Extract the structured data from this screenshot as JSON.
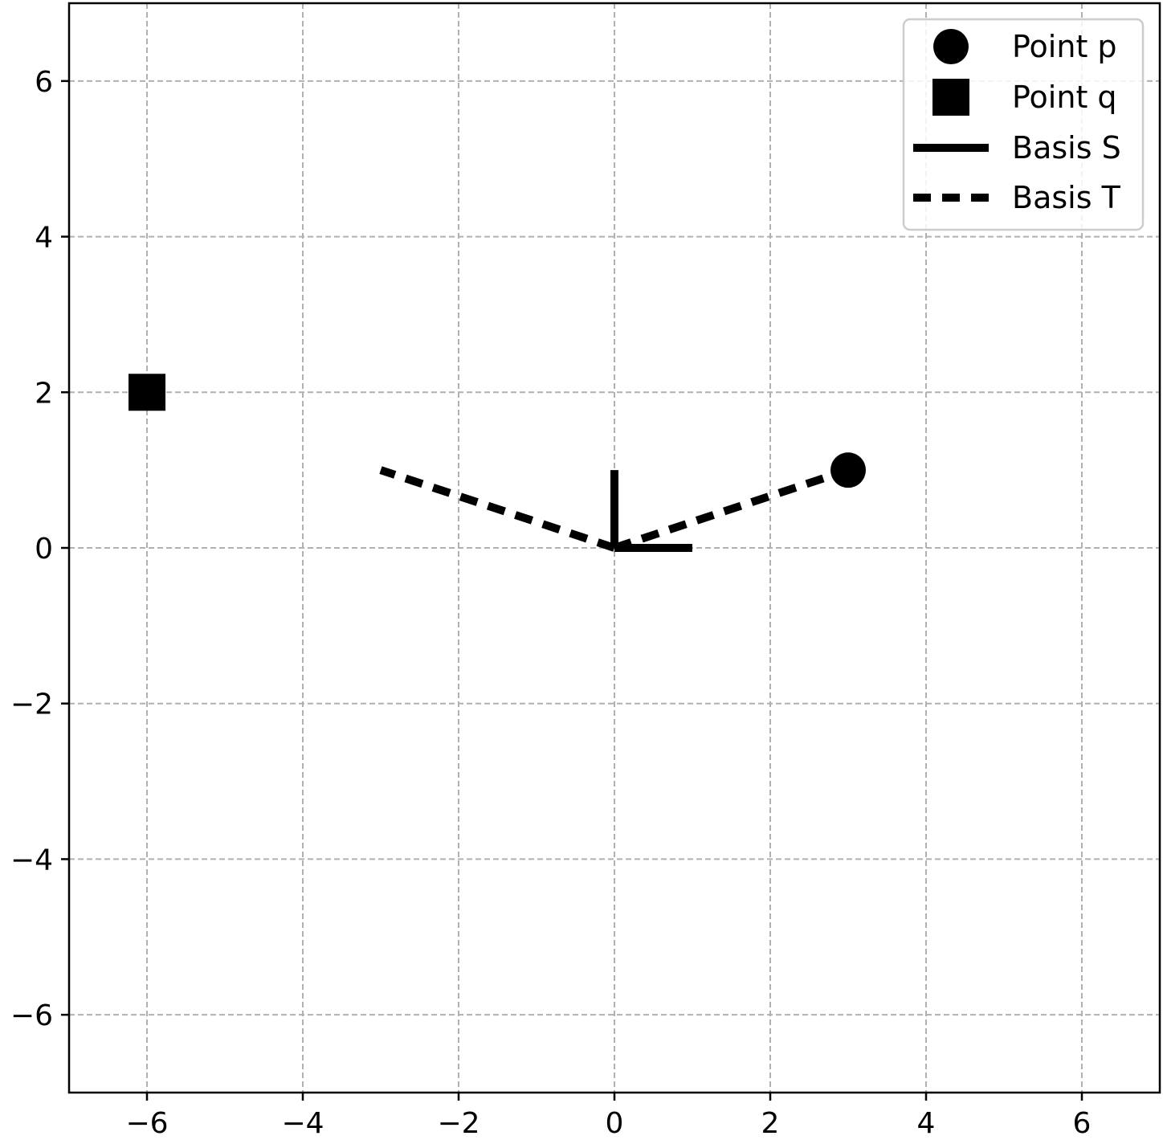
{
  "chart_data": {
    "type": "scatter",
    "title": "",
    "xlabel": "",
    "ylabel": "",
    "xlim": [
      -7,
      7
    ],
    "ylim": [
      -7,
      7
    ],
    "xticks": [
      -6,
      -4,
      -2,
      0,
      2,
      4,
      6
    ],
    "yticks": [
      -6,
      -4,
      -2,
      0,
      2,
      4,
      6
    ],
    "xtick_labels": [
      "−6",
      "−4",
      "−2",
      "0",
      "2",
      "4",
      "6"
    ],
    "ytick_labels": [
      "−6",
      "−4",
      "−2",
      "0",
      "2",
      "4",
      "6"
    ],
    "grid": true,
    "legend_position": "top-right",
    "series": [
      {
        "name": "Point p",
        "kind": "marker",
        "marker": "circle",
        "points": [
          {
            "x": 3,
            "y": 1
          }
        ],
        "color": "#000000"
      },
      {
        "name": "Point q",
        "kind": "marker",
        "marker": "square",
        "points": [
          {
            "x": -6,
            "y": 2
          }
        ],
        "color": "#000000"
      },
      {
        "name": "Basis S",
        "kind": "vectors",
        "linestyle": "solid",
        "color": "#000000",
        "vectors": [
          {
            "x0": 0,
            "y0": 0,
            "x1": 1,
            "y1": 0
          },
          {
            "x0": 0,
            "y0": 0,
            "x1": 0,
            "y1": 1
          }
        ]
      },
      {
        "name": "Basis T",
        "kind": "vectors",
        "linestyle": "dashed",
        "color": "#000000",
        "vectors": [
          {
            "x0": 0,
            "y0": 0,
            "x1": 3,
            "y1": 1
          },
          {
            "x0": 0,
            "y0": 0,
            "x1": -3,
            "y1": 1
          }
        ]
      }
    ]
  }
}
